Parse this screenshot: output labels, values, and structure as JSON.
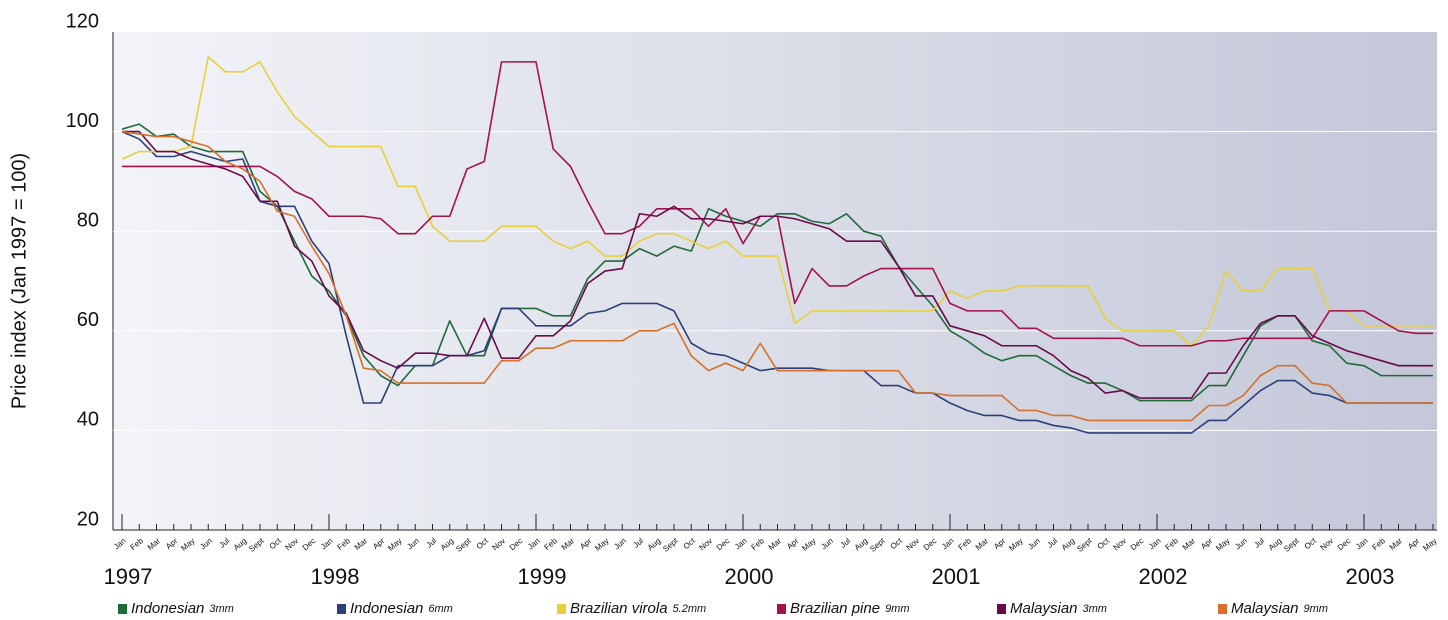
{
  "chart_data": {
    "type": "line",
    "y_label": "Price index (Jan 1997 = 100)",
    "ylim": [
      20,
      120
    ],
    "yticks": [
      20,
      40,
      60,
      80,
      100,
      120
    ],
    "grid": true,
    "categories": [
      "Jan",
      "Feb",
      "Mar",
      "Apr",
      "May",
      "Jun",
      "Jul",
      "Aug",
      "Sept",
      "Oct",
      "Nov",
      "Dec",
      "Jan",
      "Feb",
      "Mar",
      "Apr",
      "May",
      "Jun",
      "Jul",
      "Aug",
      "Sept",
      "Oct",
      "Nov",
      "Dec",
      "Jan",
      "Feb",
      "Mar",
      "Apr",
      "May",
      "Jun",
      "Jul",
      "Aug",
      "Sept",
      "Oct",
      "Nov",
      "Dec",
      "Jan",
      "Feb",
      "Mar",
      "Apr",
      "May",
      "Jun",
      "Jul",
      "Aug",
      "Sept",
      "Oct",
      "Nov",
      "Dec",
      "Jan",
      "Feb",
      "Mar",
      "Apr",
      "May",
      "Jun",
      "Jul",
      "Aug",
      "Sept",
      "Oct",
      "Nov",
      "Dec",
      "Jan",
      "Feb",
      "Mar",
      "Apr",
      "May",
      "Jun",
      "Jul",
      "Aug",
      "Sept",
      "Oct",
      "Nov",
      "Dec",
      "Jan",
      "Feb",
      "Mar",
      "Apr",
      "May"
    ],
    "years": [
      "1997",
      "1998",
      "1999",
      "2000",
      "2001",
      "2002",
      "2003"
    ],
    "series": [
      {
        "name": "Indonesian",
        "size_label": "3mm",
        "color": "#1f6a3b",
        "values": [
          100.5,
          101.5,
          99,
          99.5,
          97,
          96,
          96,
          96,
          88,
          85,
          78,
          71,
          68,
          63,
          55,
          51,
          49,
          53,
          53,
          62,
          55,
          55,
          64.5,
          64.5,
          64.5,
          63,
          63,
          70.5,
          74,
          74,
          76.5,
          75,
          77,
          76,
          84.5,
          83,
          82,
          81,
          83.5,
          83.5,
          82,
          81.5,
          83.5,
          80,
          79,
          73,
          69,
          65,
          60,
          58,
          55.5,
          54,
          55,
          55,
          53,
          51,
          49.5,
          49.5,
          48,
          46,
          46,
          46,
          46,
          49,
          49,
          55,
          61,
          63,
          63,
          58,
          57,
          53.5,
          53,
          51,
          51,
          51,
          51
        ]
      },
      {
        "name": "Indonesian",
        "size_label": "6mm",
        "color": "#2b3f7a",
        "values": [
          100,
          98.5,
          95,
          95,
          96,
          95,
          94,
          94.5,
          86,
          85,
          85,
          78,
          73.5,
          59,
          45.5,
          45.5,
          53,
          53,
          53,
          55,
          55,
          56,
          64.5,
          64.5,
          61,
          61,
          61,
          63.5,
          64,
          65.5,
          65.5,
          65.5,
          64,
          57.5,
          55.5,
          55,
          53.5,
          52,
          52.5,
          52.5,
          52.5,
          52,
          52,
          52,
          49,
          49,
          47.5,
          47.5,
          45.5,
          44,
          43,
          43,
          42,
          42,
          41,
          40.5,
          39.5,
          39.5,
          39.5,
          39.5,
          39.5,
          39.5,
          39.5,
          42,
          42,
          45,
          48,
          50,
          50,
          47.5,
          47,
          45.5,
          45.5,
          45.5,
          45.5,
          45.5,
          45.5
        ]
      },
      {
        "name": "Brazilian virola",
        "size_label": "5.2mm",
        "color": "#e9cf3c",
        "values": [
          94.5,
          96,
          96,
          96,
          97,
          115,
          112,
          112,
          114,
          108,
          103,
          100,
          97,
          97,
          97,
          97,
          89,
          89,
          81,
          78,
          78,
          78,
          81,
          81,
          81,
          78,
          76.5,
          78,
          75,
          75,
          78,
          79.5,
          79.5,
          78,
          76.5,
          78,
          75,
          75,
          75,
          61.5,
          64,
          64,
          64,
          64,
          64,
          64,
          64,
          64,
          68,
          66.5,
          68,
          68,
          69,
          69,
          69,
          69,
          69,
          62.5,
          60,
          60,
          60,
          60,
          57,
          61,
          72,
          68,
          68,
          72.5,
          72.5,
          72.5,
          64,
          64,
          61,
          61,
          61,
          61,
          61
        ]
      },
      {
        "name": "Brazilian pine",
        "size_label": "9mm",
        "color": "#a3124a",
        "values": [
          93,
          93,
          93,
          93,
          93,
          93,
          93,
          93,
          93,
          91,
          88,
          86.5,
          83,
          83,
          83,
          82.5,
          79.5,
          79.5,
          83,
          83,
          92.5,
          94,
          114,
          114,
          114,
          96.5,
          93,
          86,
          79.5,
          79.5,
          81,
          84.5,
          84.5,
          84.5,
          81,
          84.5,
          77.5,
          83,
          83,
          65.5,
          72.5,
          69,
          69,
          71,
          72.5,
          72.5,
          72.5,
          72.5,
          65.5,
          64,
          64,
          64,
          60.5,
          60.5,
          58.5,
          58.5,
          58.5,
          58.5,
          58.5,
          57,
          57,
          57,
          57,
          58,
          58,
          58.5,
          58.5,
          58.5,
          58.5,
          58.5,
          64,
          64,
          64,
          62,
          60,
          59.5,
          59.5
        ]
      },
      {
        "name": "Malaysian",
        "size_label": "3mm",
        "color": "#6a0a4c",
        "values": [
          100,
          100,
          96,
          96,
          94.5,
          93.5,
          92.5,
          91,
          86,
          86,
          77,
          74,
          67,
          63.5,
          56,
          54,
          52.5,
          55.5,
          55.5,
          55,
          55,
          62.5,
          54.5,
          54.5,
          59,
          59,
          62,
          69.5,
          72,
          72.5,
          83.5,
          83,
          85,
          82.5,
          82.5,
          82,
          81.5,
          83,
          83,
          82.5,
          81.5,
          80.5,
          78,
          78,
          78,
          73,
          67,
          67,
          61,
          60,
          59,
          57,
          57,
          57,
          55,
          52,
          50.5,
          47.5,
          48,
          46.5,
          46.5,
          46.5,
          46.5,
          51.5,
          51.5,
          57,
          61.5,
          63,
          63,
          59,
          57.5,
          56,
          55,
          54,
          53,
          53,
          53
        ]
      },
      {
        "name": "Malaysian",
        "size_label": "9mm",
        "color": "#d6702a",
        "values": [
          100,
          99.5,
          99,
          99,
          98,
          97,
          94,
          92.5,
          90,
          84,
          83,
          77,
          71.5,
          63,
          52.5,
          52,
          49.5,
          49.5,
          49.5,
          49.5,
          49.5,
          49.5,
          54,
          54,
          56.5,
          56.5,
          58,
          58,
          58,
          58,
          60,
          60,
          61.5,
          55,
          52,
          53.5,
          52,
          57.5,
          52,
          52,
          52,
          52,
          52,
          52,
          52,
          52,
          47.5,
          47.5,
          47,
          47,
          47,
          47,
          44,
          44,
          43,
          43,
          42,
          42,
          42,
          42,
          42,
          42,
          42,
          45,
          45,
          47,
          51,
          53,
          53,
          49.5,
          49,
          45.5,
          45.5,
          45.5,
          45.5,
          45.5,
          45.5
        ]
      }
    ]
  }
}
